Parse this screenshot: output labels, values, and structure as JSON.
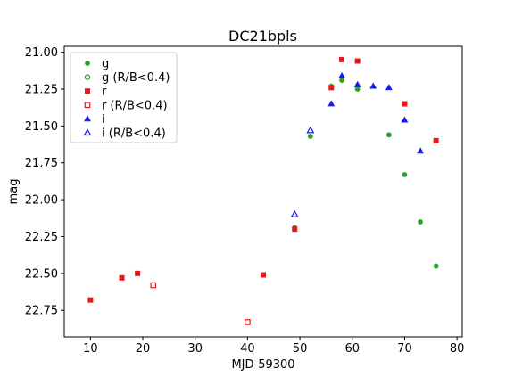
{
  "chart_data": {
    "type": "scatter",
    "title": "DC21bpls",
    "xlabel": "MJD-59300",
    "ylabel": "mag",
    "xlim": [
      5,
      81
    ],
    "ylim": [
      22.93,
      20.96
    ],
    "y_inverted": true,
    "x_ticks": [
      10,
      20,
      30,
      40,
      50,
      60,
      70,
      80
    ],
    "y_ticks": [
      21.0,
      21.25,
      21.5,
      21.75,
      22.0,
      22.25,
      22.5,
      22.75
    ],
    "x_tick_labels": [
      "10",
      "20",
      "30",
      "40",
      "50",
      "60",
      "70",
      "80"
    ],
    "y_tick_labels": [
      "21.00",
      "21.25",
      "21.50",
      "21.75",
      "22.00",
      "22.25",
      "22.50",
      "22.75"
    ],
    "grid": false,
    "legend_position": "top-left",
    "series": [
      {
        "name": "g",
        "color": "#2ca02c",
        "marker": "circle",
        "filled": true,
        "points": [
          {
            "x": 49,
            "y": 22.19
          },
          {
            "x": 52,
            "y": 21.57
          },
          {
            "x": 56,
            "y": 21.23
          },
          {
            "x": 58,
            "y": 21.19
          },
          {
            "x": 61,
            "y": 21.25
          },
          {
            "x": 67,
            "y": 21.56
          },
          {
            "x": 70,
            "y": 21.83
          },
          {
            "x": 73,
            "y": 22.15
          },
          {
            "x": 76,
            "y": 22.45
          }
        ]
      },
      {
        "name": "g (R/B<0.4)",
        "color": "#2ca02c",
        "marker": "circle",
        "filled": false,
        "points": []
      },
      {
        "name": "r",
        "color": "#e31a1c",
        "marker": "square",
        "filled": true,
        "points": [
          {
            "x": 10,
            "y": 22.68
          },
          {
            "x": 16,
            "y": 22.53
          },
          {
            "x": 19,
            "y": 22.5
          },
          {
            "x": 43,
            "y": 22.51
          },
          {
            "x": 49,
            "y": 22.2
          },
          {
            "x": 56,
            "y": 21.24
          },
          {
            "x": 58,
            "y": 21.05
          },
          {
            "x": 61,
            "y": 21.06
          },
          {
            "x": 70,
            "y": 21.35
          },
          {
            "x": 76,
            "y": 21.6
          }
        ]
      },
      {
        "name": "r (R/B<0.4)",
        "color": "#e31a1c",
        "marker": "square",
        "filled": false,
        "points": [
          {
            "x": 22,
            "y": 22.58
          },
          {
            "x": 40,
            "y": 22.83
          }
        ]
      },
      {
        "name": "i",
        "color": "#1a1aee",
        "marker": "triangle",
        "filled": true,
        "points": [
          {
            "x": 56,
            "y": 21.35
          },
          {
            "x": 58,
            "y": 21.16
          },
          {
            "x": 61,
            "y": 21.22
          },
          {
            "x": 64,
            "y": 21.23
          },
          {
            "x": 67,
            "y": 21.24
          },
          {
            "x": 70,
            "y": 21.46
          },
          {
            "x": 73,
            "y": 21.67
          }
        ]
      },
      {
        "name": "i (R/B<0.4)",
        "color": "#1a1aee",
        "marker": "triangle",
        "filled": false,
        "points": [
          {
            "x": 49,
            "y": 22.1
          },
          {
            "x": 52,
            "y": 21.53
          }
        ]
      }
    ]
  }
}
